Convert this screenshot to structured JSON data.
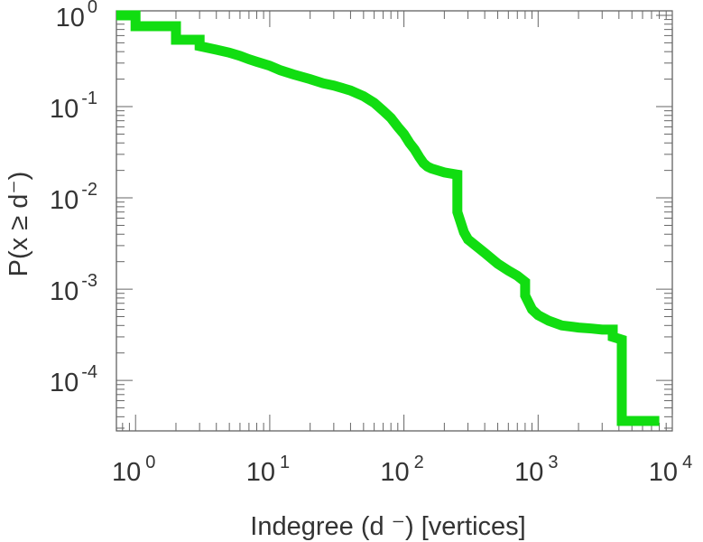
{
  "chart_data": {
    "type": "line",
    "title": "",
    "xlabel": "Indegree (d  ⁻) [vertices]",
    "ylabel": "P(x ≥ d⁻)",
    "x_scale": "log",
    "y_scale": "log",
    "xlim": [
      0.72,
      10000
    ],
    "ylim": [
      2.8e-05,
      1.12
    ],
    "x_ticks": [
      {
        "base": "10",
        "exp": "0"
      },
      {
        "base": "10",
        "exp": "1"
      },
      {
        "base": "10",
        "exp": "2"
      },
      {
        "base": "10",
        "exp": "3"
      },
      {
        "base": "10",
        "exp": "4"
      }
    ],
    "y_ticks": [
      {
        "base": "10",
        "exp": "0"
      },
      {
        "base": "10",
        "exp": "-1"
      },
      {
        "base": "10",
        "exp": "-2"
      },
      {
        "base": "10",
        "exp": "-3"
      },
      {
        "base": "10",
        "exp": "-4"
      }
    ],
    "grid": false,
    "series": [
      {
        "color": "#11dd11",
        "x": [
          0.72,
          1,
          1,
          2,
          2,
          3,
          3,
          4,
          5,
          6,
          7,
          8,
          10,
          12,
          15,
          20,
          25,
          30,
          40,
          50,
          60,
          70,
          80,
          90,
          100,
          110,
          120,
          130,
          140,
          150,
          160,
          200,
          250,
          250,
          280,
          300,
          400,
          500,
          600,
          700,
          800,
          800,
          900,
          1000,
          1200,
          1500,
          2000,
          2500,
          3000,
          3600,
          3600,
          4200,
          4200,
          5000,
          6000,
          8000
        ],
        "y": [
          1.0,
          1.0,
          0.76,
          0.76,
          0.54,
          0.54,
          0.46,
          0.42,
          0.39,
          0.36,
          0.33,
          0.31,
          0.28,
          0.25,
          0.225,
          0.2,
          0.18,
          0.17,
          0.15,
          0.13,
          0.11,
          0.09,
          0.075,
          0.06,
          0.05,
          0.04,
          0.034,
          0.028,
          0.024,
          0.022,
          0.021,
          0.019,
          0.018,
          0.007,
          0.0042,
          0.0035,
          0.0025,
          0.0019,
          0.0016,
          0.0014,
          0.0012,
          0.00085,
          0.0006,
          0.00052,
          0.00045,
          0.0004,
          0.00038,
          0.00037,
          0.00036,
          0.00036,
          0.0003,
          0.00028,
          3.6e-05,
          3.6e-05,
          3.6e-05,
          3.6e-05
        ]
      }
    ]
  }
}
